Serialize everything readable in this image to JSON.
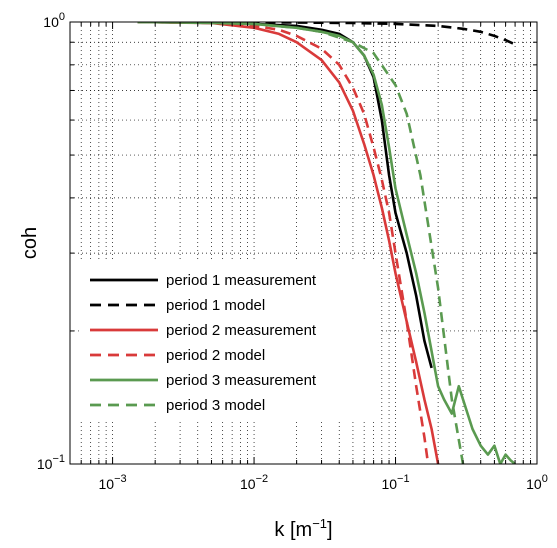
{
  "chart_data": {
    "type": "line",
    "xscale": "log",
    "yscale": "log",
    "xlim": [
      0.0005,
      1
    ],
    "ylim": [
      0.1,
      1
    ],
    "grid": "major and minor (dotted)",
    "legend_placement": "bottom-left",
    "xlabel": "k [m",
    "xlabel_sup": "−1",
    "xlabel_close": "]",
    "ylabel": "coh",
    "xticks": [
      {
        "value": 0.001,
        "base": "10",
        "exp": "−3"
      },
      {
        "value": 0.01,
        "base": "10",
        "exp": "−2"
      },
      {
        "value": 0.1,
        "base": "10",
        "exp": "−1"
      },
      {
        "value": 1,
        "base": "10",
        "exp": "0"
      }
    ],
    "yticks": [
      {
        "value": 0.1,
        "base": "10",
        "exp": "−1"
      },
      {
        "value": 1,
        "base": "10",
        "exp": "0"
      }
    ],
    "series": [
      {
        "name": "period 1 measurement",
        "color": "#000000",
        "dash": "solid",
        "x": [
          0.0015,
          0.005,
          0.01,
          0.02,
          0.03,
          0.04,
          0.05,
          0.06,
          0.07,
          0.08,
          0.09,
          0.1,
          0.12,
          0.14,
          0.16,
          0.18
        ],
        "y": [
          1.0,
          0.995,
          0.99,
          0.98,
          0.96,
          0.94,
          0.9,
          0.84,
          0.75,
          0.6,
          0.45,
          0.37,
          0.3,
          0.24,
          0.19,
          0.165
        ]
      },
      {
        "name": "period 1 model",
        "color": "#000000",
        "dash": "dashed",
        "x": [
          0.0015,
          0.01,
          0.05,
          0.1,
          0.2,
          0.3,
          0.4,
          0.5,
          0.6,
          0.7
        ],
        "y": [
          1.0,
          0.999,
          0.995,
          0.99,
          0.98,
          0.965,
          0.95,
          0.93,
          0.91,
          0.89
        ]
      },
      {
        "name": "period 2 measurement",
        "color": "#d93a3a",
        "dash": "solid",
        "x": [
          0.0015,
          0.005,
          0.01,
          0.015,
          0.02,
          0.03,
          0.04,
          0.05,
          0.06,
          0.07,
          0.08,
          0.09,
          0.1,
          0.12,
          0.14,
          0.16,
          0.18,
          0.2
        ],
        "y": [
          1.0,
          0.995,
          0.97,
          0.94,
          0.9,
          0.82,
          0.73,
          0.63,
          0.53,
          0.45,
          0.38,
          0.32,
          0.27,
          0.21,
          0.17,
          0.14,
          0.12,
          0.1
        ]
      },
      {
        "name": "period 2 model",
        "color": "#d93a3a",
        "dash": "dashed",
        "x": [
          0.0015,
          0.005,
          0.01,
          0.015,
          0.02,
          0.03,
          0.04,
          0.05,
          0.06,
          0.07,
          0.08,
          0.09,
          0.1,
          0.12,
          0.14,
          0.16,
          0.17
        ],
        "y": [
          1.0,
          0.995,
          0.98,
          0.96,
          0.93,
          0.87,
          0.8,
          0.71,
          0.62,
          0.52,
          0.44,
          0.37,
          0.3,
          0.21,
          0.15,
          0.115,
          0.1
        ]
      },
      {
        "name": "period 3 measurement",
        "color": "#5a9a50",
        "dash": "solid",
        "x": [
          0.0015,
          0.005,
          0.01,
          0.02,
          0.03,
          0.04,
          0.05,
          0.06,
          0.07,
          0.08,
          0.09,
          0.1,
          0.12,
          0.14,
          0.16,
          0.18,
          0.2,
          0.22,
          0.25,
          0.28,
          0.3,
          0.35,
          0.4,
          0.45,
          0.5,
          0.55,
          0.6,
          0.65,
          0.7
        ],
        "y": [
          1.0,
          0.995,
          0.99,
          0.97,
          0.95,
          0.93,
          0.9,
          0.84,
          0.76,
          0.65,
          0.52,
          0.42,
          0.33,
          0.27,
          0.22,
          0.18,
          0.15,
          0.14,
          0.13,
          0.15,
          0.14,
          0.12,
          0.11,
          0.105,
          0.11,
          0.1,
          0.105,
          0.102,
          0.1
        ]
      },
      {
        "name": "period 3 model",
        "color": "#5a9a50",
        "dash": "dashed",
        "x": [
          0.0015,
          0.005,
          0.01,
          0.02,
          0.03,
          0.05,
          0.07,
          0.1,
          0.12,
          0.15,
          0.2,
          0.25,
          0.3
        ],
        "y": [
          1.0,
          0.998,
          0.99,
          0.97,
          0.95,
          0.9,
          0.85,
          0.72,
          0.62,
          0.45,
          0.25,
          0.14,
          0.1
        ]
      }
    ]
  }
}
